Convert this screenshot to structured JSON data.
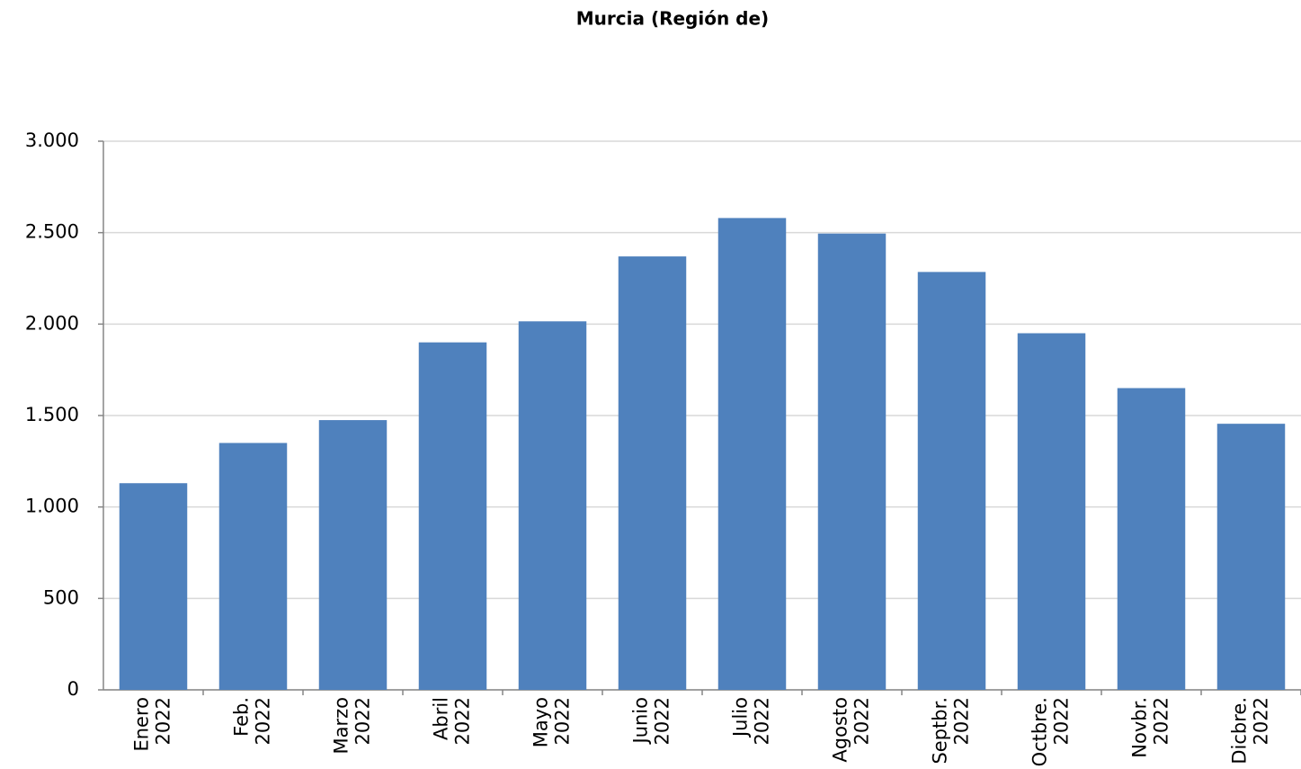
{
  "chart_data": {
    "type": "bar",
    "title": "Murcia (Región de)",
    "categories": [
      "Enero 2022",
      "Feb. 2022",
      "Marzo 2022",
      "Abril 2022",
      "Mayo 2022",
      "Junio 2022",
      "Julio 2022",
      "Agosto 2022",
      "Septbr. 2022",
      "Octbre. 2022",
      "Novbr. 2022",
      "Dicbre. 2022"
    ],
    "values": [
      1130,
      1350,
      1475,
      1900,
      2015,
      2370,
      2580,
      2495,
      2285,
      1950,
      1650,
      1455
    ],
    "color": "#4f81bd",
    "ylim": [
      0,
      3000
    ],
    "yticks": [
      0,
      500,
      {
        "value": 1000,
        "label": "1.000"
      },
      {
        "value": 1500,
        "label": "1.500"
      },
      {
        "value": 2000,
        "label": "2.000"
      },
      {
        "value": 2500,
        "label": "2.500"
      },
      {
        "value": 3000,
        "label": "3.000"
      }
    ],
    "grid": true
  }
}
